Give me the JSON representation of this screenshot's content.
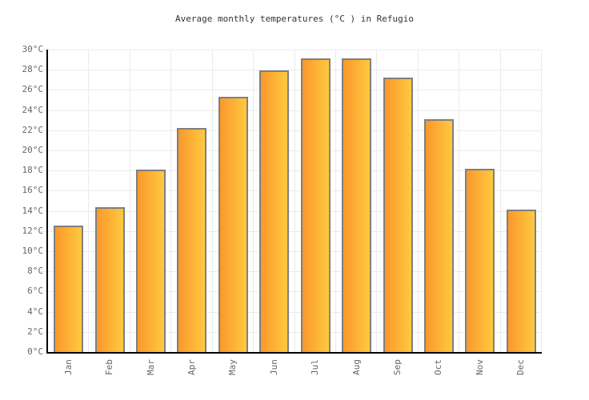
{
  "chart_data": {
    "type": "bar",
    "title": "Average monthly temperatures (°C ) in Refugio",
    "categories": [
      "Jan",
      "Feb",
      "Mar",
      "Apr",
      "May",
      "Jun",
      "Jul",
      "Aug",
      "Sep",
      "Oct",
      "Nov",
      "Dec"
    ],
    "values": [
      12.5,
      14.4,
      18.1,
      22.2,
      25.3,
      27.9,
      29.1,
      29.1,
      27.2,
      23.1,
      18.2,
      14.1
    ],
    "xlabel": "",
    "ylabel": "",
    "ylim": [
      0,
      30
    ],
    "ytick_step": 2,
    "yticks": [
      "0°C",
      "2°C",
      "4°C",
      "6°C",
      "8°C",
      "10°C",
      "12°C",
      "14°C",
      "16°C",
      "18°C",
      "20°C",
      "22°C",
      "24°C",
      "26°C",
      "28°C",
      "30°C"
    ],
    "grid": "both",
    "legend_position": "none",
    "colors": {
      "background": "#FFFFFF",
      "title_text": "#333333",
      "tick_label": "#666666",
      "axis_line": "#000000",
      "gridline": "#EBEBEB",
      "bar_border": "#7F7F7F",
      "bar_gradient_left": "#FA982B",
      "bar_gradient_right": "#FFC940"
    }
  }
}
